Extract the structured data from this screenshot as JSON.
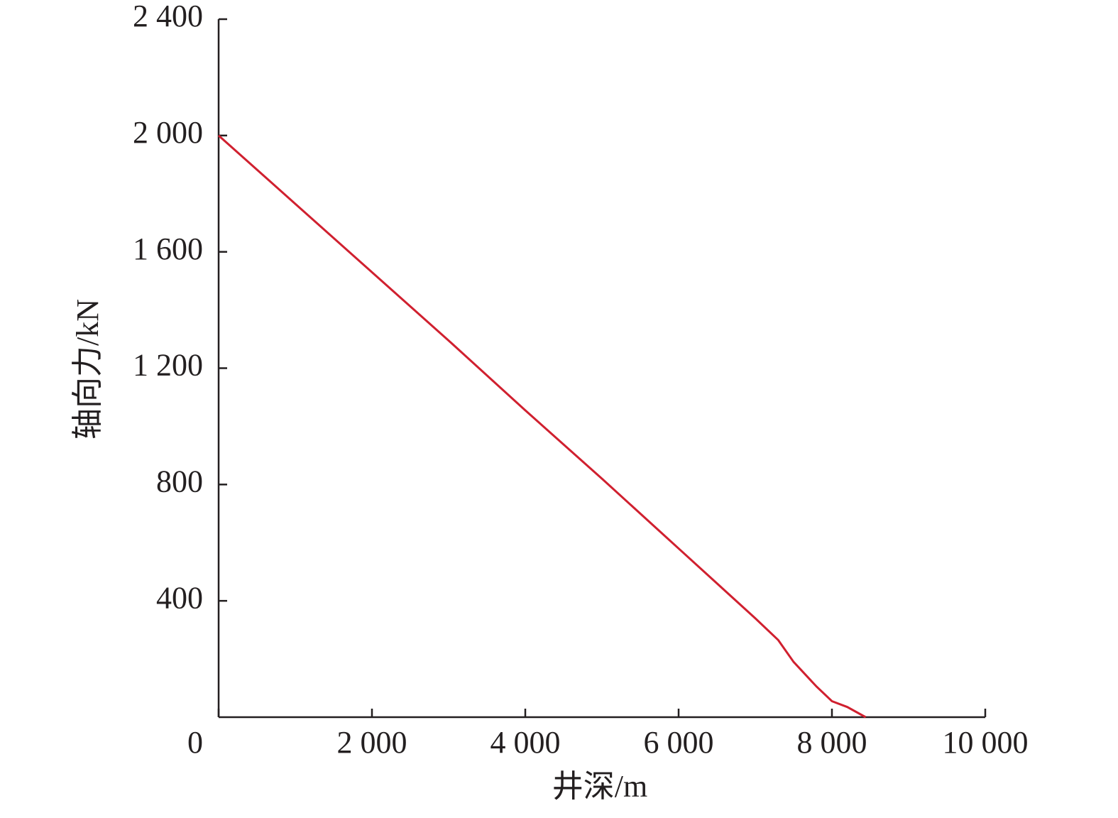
{
  "chart_data": {
    "type": "line",
    "x_label": "井深/m",
    "y_label": "轴向力/kN",
    "x": [
      0,
      1000,
      2000,
      3000,
      4000,
      5000,
      6000,
      7000,
      7300,
      7500,
      7800,
      8000,
      8200,
      8440
    ],
    "series": [
      {
        "color": "#d0202f",
        "values": [
          2000,
          1765,
          1530,
          1295,
          1055,
          820,
          580,
          340,
          265,
          190,
          105,
          55,
          35,
          0
        ]
      }
    ],
    "xlim": [
      0,
      10000
    ],
    "xticks": [
      0,
      {
        "value": 2000,
        "label": "2 000"
      },
      {
        "value": 4000,
        "label": "4 000"
      },
      {
        "value": 6000,
        "label": "6 000"
      },
      {
        "value": 8000,
        "label": "8 000"
      },
      {
        "value": 10000,
        "label": "10 000"
      }
    ],
    "ylim": [
      0,
      2400
    ],
    "yticks": [
      400,
      800,
      {
        "value": 1200,
        "label": "1 200"
      },
      {
        "value": 1600,
        "label": "1 600"
      },
      {
        "value": 2000,
        "label": "2 000"
      },
      {
        "value": 2400,
        "label": "2 400"
      }
    ],
    "grid": false
  }
}
